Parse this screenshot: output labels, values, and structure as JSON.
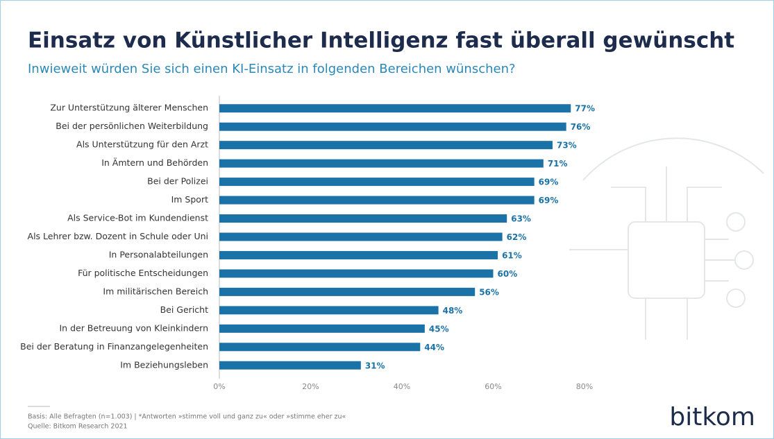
{
  "chart_data": {
    "type": "bar",
    "orientation": "horizontal",
    "title": "Einsatz von Künstlicher Intelligenz fast überall gewünscht",
    "subtitle": "Inwieweit würden Sie sich einen KI-Einsatz in folgenden Bereichen wünschen?",
    "categories": [
      "Zur Unterstützung älterer Menschen",
      "Bei der persönlichen Weiterbildung",
      "Als Unterstützung für den Arzt",
      "In Ämtern und Behörden",
      "Bei der Polizei",
      "Im Sport",
      "Als Service-Bot im Kundendienst",
      "Als Lehrer bzw. Dozent in Schule oder Uni",
      "In Personalabteilungen",
      "Für politische Entscheidungen",
      "Im militärischen Bereich",
      "Bei Gericht",
      "In der Betreuung von Kleinkindern",
      "Bei der Beratung in Finanzangelegenheiten",
      "Im Beziehungsleben"
    ],
    "values": [
      77,
      76,
      73,
      71,
      69,
      69,
      63,
      62,
      61,
      60,
      56,
      48,
      45,
      44,
      31
    ],
    "value_labels": [
      "77%",
      "76%",
      "73%",
      "71%",
      "69%",
      "69%",
      "63%",
      "62%",
      "61%",
      "60%",
      "56%",
      "48%",
      "45%",
      "44%",
      "31%"
    ],
    "color": "#1b72a6",
    "xlim": [
      0,
      80
    ],
    "xticks": [
      {
        "value": 0,
        "label": "0%"
      },
      {
        "value": 20,
        "label": "20%"
      },
      {
        "value": 40,
        "label": "40%"
      },
      {
        "value": 60,
        "label": "60%"
      },
      {
        "value": 80,
        "label": "80%"
      }
    ],
    "grid": false,
    "note": "Basis: Alle Befragten (n=1.003) | *Antworten »stimme voll und ganz zu« oder »stimme eher zu«",
    "source": "Quelle: Bitkom Research 2021",
    "logo": "bitkom"
  }
}
